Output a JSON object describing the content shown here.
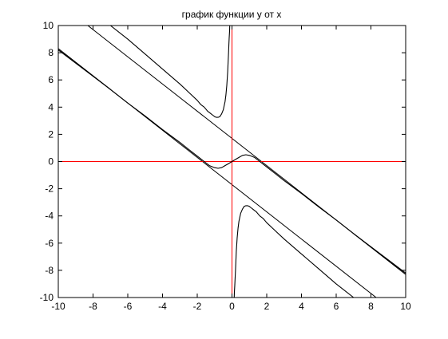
{
  "chart_data": {
    "type": "line",
    "title": "график функции y от x",
    "xlabel": "",
    "ylabel": "",
    "xlim": [
      -10,
      10
    ],
    "ylim": [
      -10,
      10
    ],
    "grid": false,
    "legend": "none",
    "xticks": [
      "-10",
      "-8",
      "-6",
      "-4",
      "-2",
      "0",
      "2",
      "4",
      "6",
      "8",
      "10"
    ],
    "yticks": [
      "-10",
      "-8",
      "-6",
      "-4",
      "-2",
      "0",
      "2",
      "4",
      "6",
      "8",
      "10"
    ],
    "axis_lines_color": "#ff0000",
    "series_color": "#000000",
    "reference_lines": [
      {
        "x": [
          -10,
          10
        ],
        "y": [
          11.7,
          -8.3
        ]
      },
      {
        "x": [
          -10,
          10
        ],
        "y": [
          8.3,
          -11.7
        ]
      },
      {
        "x": [
          0,
          0
        ],
        "y": [
          -10,
          10
        ],
        "color": "#ff0000"
      },
      {
        "x": [
          -10,
          10
        ],
        "y": [
          0,
          0
        ],
        "color": "#ff0000"
      }
    ],
    "series": [
      {
        "x": [
          -7.0,
          -6.0,
          -5.0,
          -4.0,
          -3.0,
          -2.5,
          -2.0,
          -1.8,
          -1.6,
          -1.4,
          -1.3,
          -1.2,
          -1.1,
          -1.0,
          -0.9,
          -0.8,
          -0.7,
          -0.6,
          -0.5,
          -0.4,
          -0.35,
          -0.3,
          -0.25,
          -0.2,
          -0.18,
          -0.16,
          -0.14,
          -0.13
        ],
        "y": [
          10.0,
          9.0,
          7.9,
          6.8,
          5.7,
          5.1,
          4.5,
          4.2,
          4.0,
          3.7,
          3.6,
          3.5,
          3.4,
          3.3,
          3.25,
          3.25,
          3.3,
          3.5,
          3.8,
          4.4,
          4.9,
          5.6,
          6.6,
          8.0,
          8.6,
          9.1,
          9.6,
          10.0
        ]
      },
      {
        "x": [
          -10.0,
          -8.0,
          -6.0,
          -5.0,
          -4.0,
          -3.0,
          -2.5,
          -2.0,
          -1.6,
          -1.3,
          -1.0,
          -0.8,
          -0.6,
          -0.4,
          -0.2,
          0.0,
          0.2,
          0.4,
          0.6,
          0.8,
          1.0,
          1.3,
          1.6,
          2.0,
          2.5,
          3.0,
          4.0,
          5.0,
          6.0,
          8.0,
          10.0
        ],
        "y": [
          8.3,
          6.3,
          4.3,
          3.35,
          2.35,
          1.4,
          0.9,
          0.4,
          0.0,
          -0.3,
          -0.45,
          -0.5,
          -0.45,
          -0.3,
          -0.15,
          0.0,
          0.15,
          0.3,
          0.45,
          0.5,
          0.45,
          0.3,
          0.0,
          -0.4,
          -0.9,
          -1.4,
          -2.35,
          -3.35,
          -4.3,
          -6.3,
          -8.3
        ]
      },
      {
        "x": [
          0.13,
          0.14,
          0.16,
          0.18,
          0.2,
          0.25,
          0.3,
          0.35,
          0.4,
          0.5,
          0.6,
          0.7,
          0.8,
          0.9,
          1.0,
          1.1,
          1.2,
          1.3,
          1.4,
          1.6,
          1.8,
          2.0,
          2.5,
          3.0,
          4.0,
          5.0,
          6.0,
          7.0,
          8.0,
          8.2
        ],
        "y": [
          -10.0,
          -9.6,
          -9.1,
          -8.6,
          -8.0,
          -6.6,
          -5.6,
          -4.9,
          -4.4,
          -3.8,
          -3.5,
          -3.3,
          -3.25,
          -3.25,
          -3.3,
          -3.4,
          -3.5,
          -3.6,
          -3.7,
          -4.0,
          -4.2,
          -4.5,
          -5.1,
          -5.7,
          -6.8,
          -7.9,
          -9.0,
          -10.0,
          -10.0,
          -10.0
        ]
      },
      {
        "x": [
          -10.0,
          -7.0
        ],
        "y": [
          8.2,
          5.3
        ]
      },
      {
        "x": [
          7.0,
          10.0
        ],
        "y": [
          -5.3,
          -8.2
        ]
      }
    ]
  }
}
